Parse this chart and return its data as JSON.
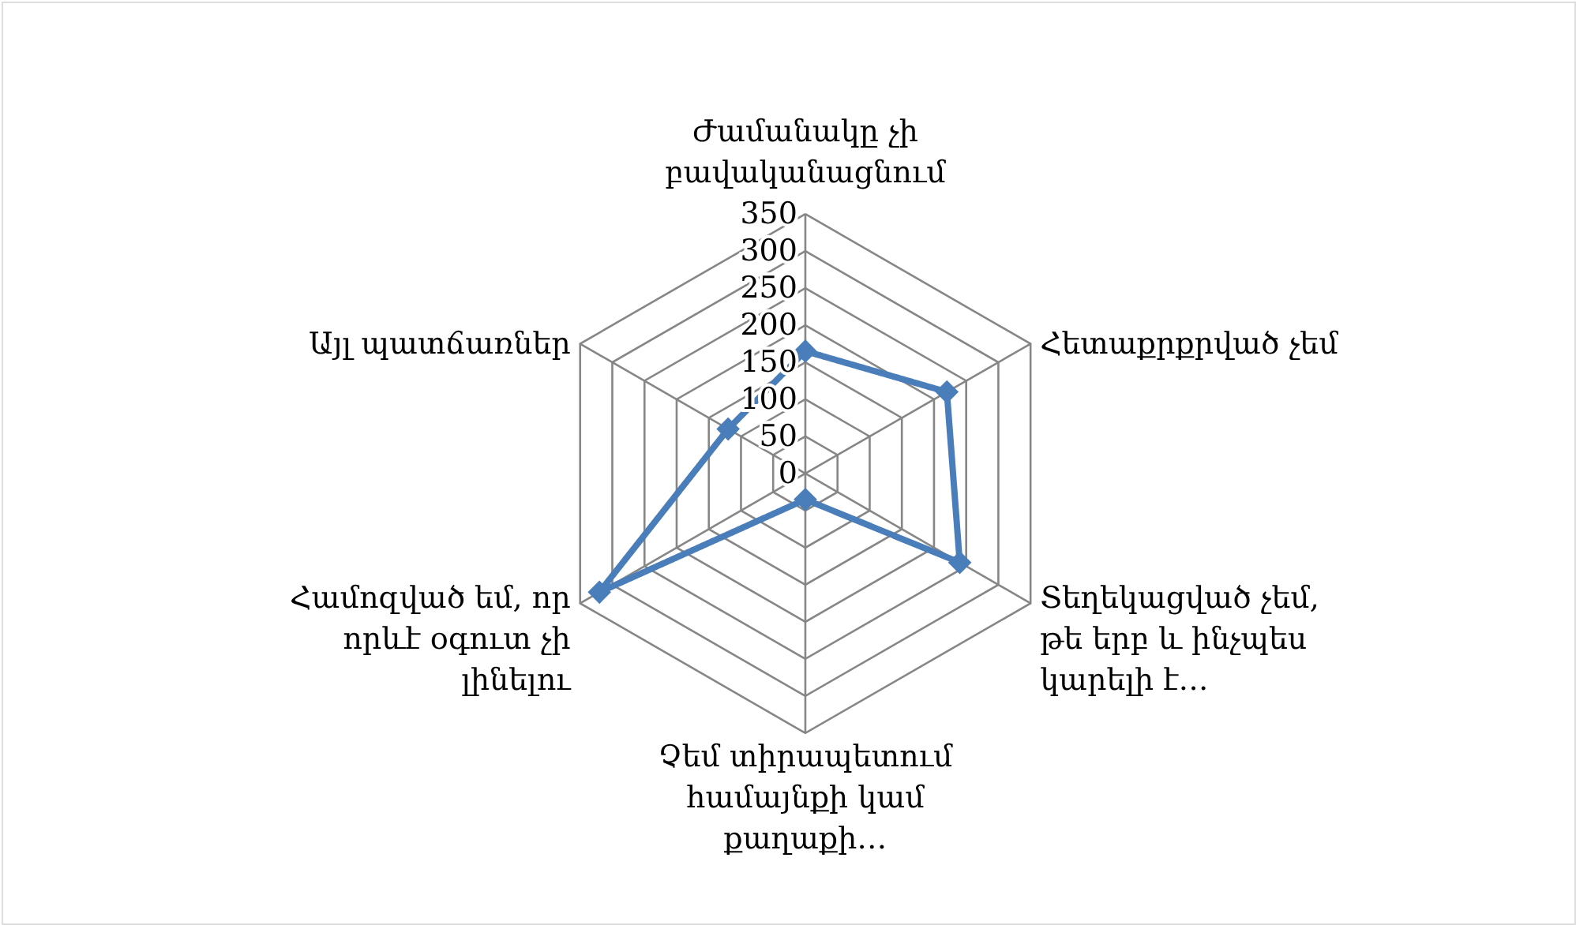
{
  "chart_data": {
    "type": "radar",
    "categories": [
      "Ժամանակը չի\nբավականացնում",
      "Հետաքրքրված չեմ",
      "Տեղեկացված չեմ,\nթե երբ և ինչպես\nկարելի է…",
      "Չեմ տիրապետում\nհամայնքի կամ\nքաղաքի…",
      "Համոզված եմ, որ\nորևէ օգուտ չի\nլինելու",
      "Այլ պատճառներ"
    ],
    "series": [
      {
        "color": "#4a7ebb",
        "values": [
          165,
          220,
          240,
          35,
          320,
          120
        ]
      }
    ],
    "ylim": [
      0,
      350
    ],
    "yticks": [
      0,
      50,
      100,
      150,
      200,
      250,
      300,
      350
    ],
    "grid": true,
    "marker": "diamond",
    "line_style": "solid"
  }
}
